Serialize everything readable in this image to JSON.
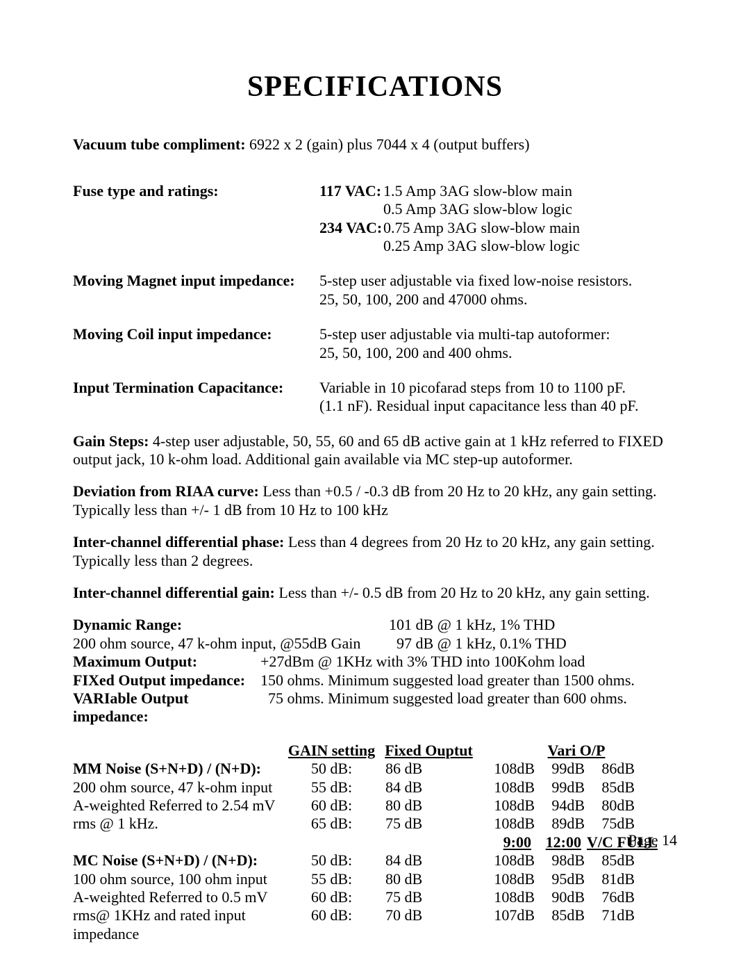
{
  "title": "SPECIFICATIONS",
  "tube": {
    "label": "Vacuum tube compliment:",
    "value": "  6922 x 2 (gain) plus 7044 x 4 (output buffers)"
  },
  "fuse": {
    "label": "Fuse type and ratings:",
    "l1a": "117 VAC:",
    "l1b": "1.5 Amp 3AG slow-blow main",
    "l2": "0.5 Amp 3AG slow-blow logic",
    "l3a": "234 VAC:",
    "l3b": "0.75 Amp 3AG slow-blow main",
    "l4": "0.25 Amp 3AG slow-blow logic"
  },
  "mm": {
    "label": "Moving Magnet input impedance:",
    "v1": "5-step user adjustable via fixed low-noise resistors.",
    "v2": "25, 50, 100, 200 and 47000 ohms."
  },
  "mc": {
    "label": "Moving Coil input impedance:",
    "v1": "5-step user adjustable via multi-tap autoformer:",
    "v2": "25, 50, 100, 200 and 400 ohms."
  },
  "cap": {
    "label": "Input Termination Capacitance:",
    "v1": "Variable in 10 picofarad steps from 10 to 1100 pF.",
    "v2": "(1.1 nF). Residual input capacitance less than 40 pF."
  },
  "gain_steps": {
    "lead": "Gain Steps:",
    "body": " 4-step user adjustable, 50, 55, 60 and 65 dB active gain at 1 kHz referred to FIXED output jack, 10 k-ohm load. Additional gain available via MC step-up autoformer."
  },
  "riaa": {
    "lead": "Deviation from RIAA curve:",
    "body": " Less than +0.5 / -0.3 dB from 20 Hz to 20 kHz, any gain setting. Typically less than +/- 1 dB from 10 Hz to 100 kHz"
  },
  "phase": {
    "lead": "Inter-channel differential phase:",
    "body": " Less than 4 degrees from 20 Hz to 20 kHz, any gain setting. Typically less than 2 degrees."
  },
  "diffgain": {
    "lead": "Inter-channel differential gain:",
    "body": " Less than +/- 0.5 dB from 20 Hz to 20 kHz, any gain setting."
  },
  "dyn": {
    "l1_label": "Dynamic Range:",
    "l1_val": "101 dB @ 1 kHz, 1% THD",
    "l2_label": "200 ohm source, 47 k-ohm input, @55dB Gain",
    "l2_val": "  97 dB @ 1 kHz, 0.1% THD",
    "l3_label": "Maximum Output:",
    "l3_val": "+27dBm @ 1KHz with 3% THD into 100Kohm load",
    "l4_label": "FIXed Output impedance:",
    "l4_val": "150 ohms. Minimum suggested load greater than 1500 ohms.",
    "l5_label": "VARIable Output impedance:",
    "l5_val": "  75 ohms. Minimum suggested load greater than 600 ohms."
  },
  "noise_hdr": {
    "c1": "GAIN setting",
    "c2": "Fixed Ouptut",
    "c3": "Vari O/P"
  },
  "mm_noise": {
    "d0": "MM Noise (S+N+D) / (N+D):",
    "d1": "200 ohm source, 47 k-ohm input",
    "d2": "A-weighted Referred to 2.54 mV",
    "d3": "rms @ 1 kHz.",
    "rows": [
      {
        "g": "50 dB:",
        "f": "86 dB",
        "v1": "108dB",
        "v2": "99dB",
        "v3": "86dB"
      },
      {
        "g": "55 dB:",
        "f": "84 dB",
        "v1": "108dB",
        "v2": "99dB",
        "v3": "85dB"
      },
      {
        "g": "60 dB:",
        "f": "80 dB",
        "v1": "108dB",
        "v2": "94dB",
        "v3": "80dB"
      },
      {
        "g": "65 dB:",
        "f": "75 dB",
        "v1": "108dB",
        "v2": "89dB",
        "v3": "75dB"
      }
    ]
  },
  "time_hdr": {
    "a": "9:00",
    "b": "12:00",
    "c": "V/C FULL"
  },
  "mc_noise": {
    "d0": "MC Noise (S+N+D) / (N+D):",
    "d1": "100 ohm source, 100 ohm input",
    "d2": "A-weighted Referred to 0.5 mV",
    "d3": "rms@ 1KHz and rated input impedance",
    "rows": [
      {
        "g": "50 dB:",
        "f": "84 dB",
        "v1": "108dB",
        "v2": "98dB",
        "v3": "85dB"
      },
      {
        "g": "55 dB:",
        "f": "80 dB",
        "v1": "108dB",
        "v2": "95dB",
        "v3": "81dB"
      },
      {
        "g": "60 dB:",
        "f": "75 dB",
        "v1": "108dB",
        "v2": "90dB",
        "v3": "76dB"
      },
      {
        "g": "60 dB:",
        "f": "70 dB",
        "v1": "107dB",
        "v2": "85dB",
        "v3": "71dB"
      }
    ]
  },
  "page_num": "Page 14"
}
